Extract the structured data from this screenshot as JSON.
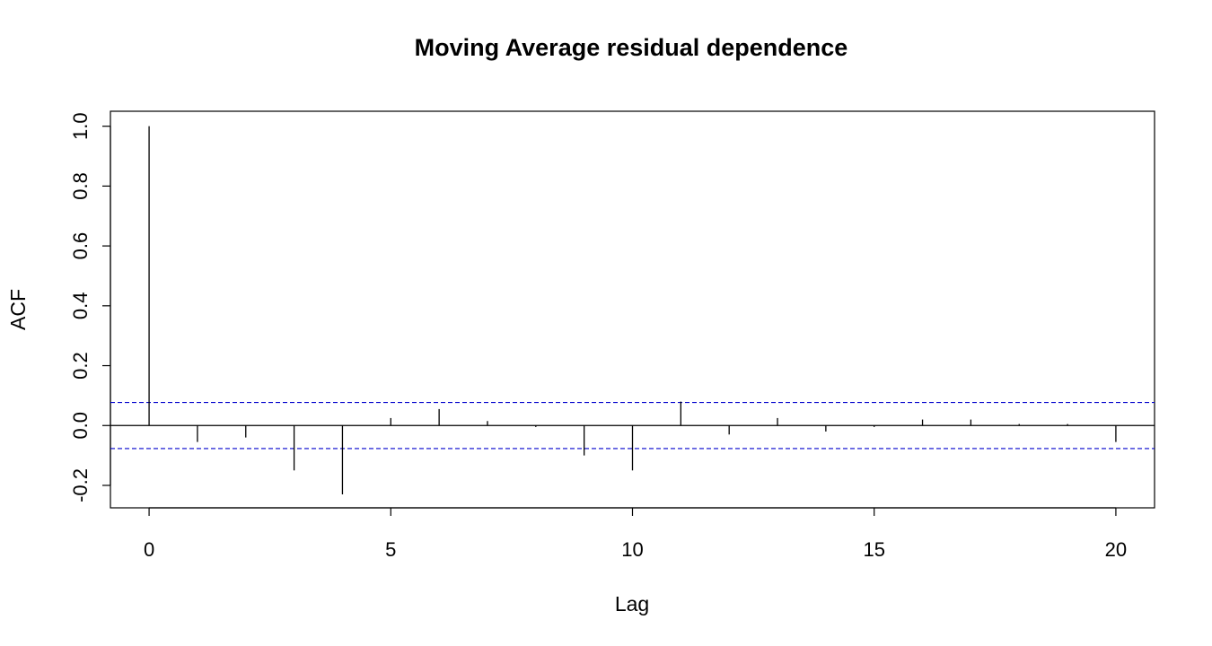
{
  "chart_data": {
    "type": "bar",
    "title": "Moving Average residual dependence",
    "xlabel": "Lag",
    "ylabel": "ACF",
    "x": [
      0,
      1,
      2,
      3,
      4,
      5,
      6,
      7,
      8,
      9,
      10,
      11,
      12,
      13,
      14,
      15,
      16,
      17,
      18,
      19,
      20
    ],
    "values": [
      1.0,
      -0.055,
      -0.04,
      -0.15,
      -0.23,
      0.025,
      0.055,
      0.015,
      -0.005,
      -0.1,
      -0.15,
      0.08,
      -0.03,
      0.025,
      -0.02,
      -0.005,
      0.02,
      0.02,
      0.005,
      0.005,
      -0.055
    ],
    "confidence_bound": 0.077,
    "xlim": [
      -0.8,
      20.8
    ],
    "ylim": [
      -0.275,
      1.05
    ],
    "xticks": [
      0,
      5,
      10,
      15,
      20
    ],
    "yticks": [
      -0.2,
      0.0,
      0.2,
      0.4,
      0.6,
      0.8,
      1.0
    ],
    "ytick_labels": [
      "-0.2",
      "0.0",
      "0.2",
      "0.4",
      "0.6",
      "0.8",
      "1.0"
    ],
    "grid": false,
    "legend": "none",
    "colors": {
      "bars": "#000000",
      "confidence": "#0000cc",
      "zero_line": "#000000"
    }
  }
}
